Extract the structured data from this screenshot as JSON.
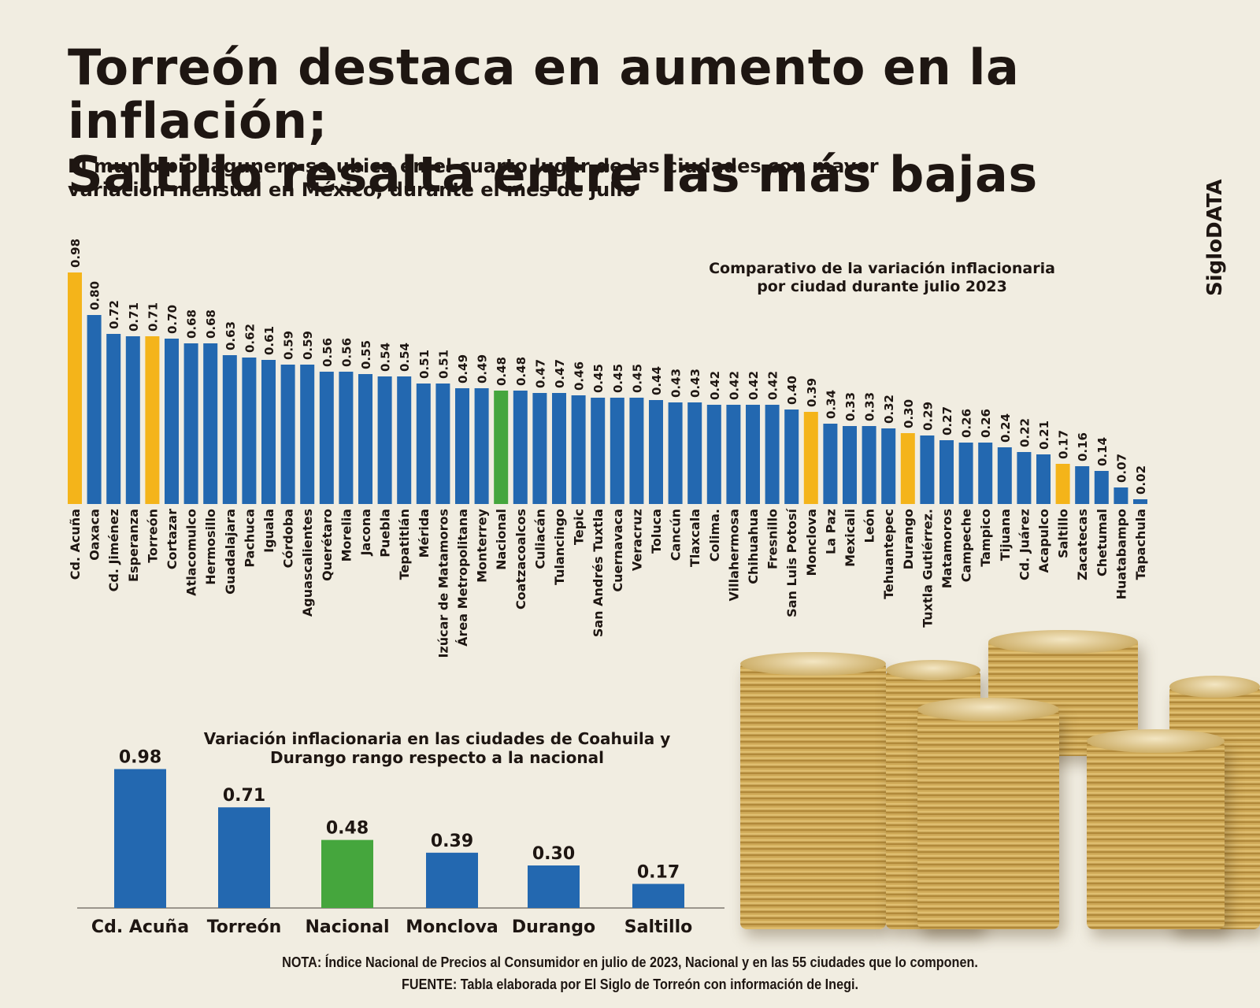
{
  "header": {
    "title_line1": "Torreón destaca en aumento en la inflación;",
    "title_line2": "Saltillo resalta entre las más bajas",
    "subtitle_line1": "El municipio lagunero se ubica en el cuarto lugar de las ciudades con mayor",
    "subtitle_line2": "variación mensual en México, durante el mes de julio",
    "brand": "SigloDATA"
  },
  "colors": {
    "city": "#2368b0",
    "highlight": "#f4b41a",
    "national": "#45a63d",
    "background": "#f1ede1",
    "text": "#1e1612"
  },
  "footer": {
    "note": "NOTA: Índice Nacional de Precios al Consumidor en julio de 2023, Nacional y en las 55 ciudades que lo componen.",
    "source": "FUENTE: Tabla elaborada por El Siglo de Torreón con información de Inegi."
  },
  "chart_data": [
    {
      "type": "bar",
      "title_line1": "Comparativo de la variación inflacionaria",
      "title_line2": "por ciudad durante julio 2023",
      "xlabel": "",
      "ylabel": "",
      "ylim": [
        0,
        1.0
      ],
      "grid": false,
      "legend": "none",
      "categories": [
        "Cd. Acuña",
        "Oaxaca",
        "Cd. Jiménez",
        "Esperanza",
        "Torreón",
        "Cortazar",
        "Atlacomulco",
        "Hermosillo",
        "Guadalajara",
        "Pachuca",
        "Iguala",
        "Córdoba",
        "Aguascalientes",
        "Querétaro",
        "Morelia",
        "Jacona",
        "Puebla",
        "Tepatitlán",
        "Mérida",
        "Izúcar de Matamoros",
        "Área Metropolitana",
        "Monterrey",
        "Nacional",
        "Coatzacoalcos",
        "Culiacán",
        "Tulancingo",
        "Tepic",
        "San Andrés Tuxtla",
        "Cuernavaca",
        "Veracruz",
        "Toluca",
        "Cancún",
        "Tlaxcala",
        "Colima.",
        "Villahermosa",
        "Chihuahua",
        "Fresnillo",
        "San Luis Potosí",
        "Monclova",
        "La Paz",
        "Mexicali",
        "León",
        "Tehuantepec",
        "Durango",
        "Tuxtla Gutiérrez.",
        "Matamoros",
        "Campeche",
        "Tampico",
        "Tijuana",
        "Cd. Juárez",
        "Acapulco",
        "Saltillo",
        "Zacatecas",
        "Chetumal",
        "Huatabampo",
        "Tapachula"
      ],
      "values": [
        0.98,
        0.8,
        0.72,
        0.71,
        0.71,
        0.7,
        0.68,
        0.68,
        0.63,
        0.62,
        0.61,
        0.59,
        0.59,
        0.56,
        0.56,
        0.55,
        0.54,
        0.54,
        0.51,
        0.51,
        0.49,
        0.49,
        0.48,
        0.48,
        0.47,
        0.47,
        0.46,
        0.45,
        0.45,
        0.45,
        0.44,
        0.43,
        0.43,
        0.42,
        0.42,
        0.42,
        0.42,
        0.4,
        0.39,
        0.34,
        0.33,
        0.33,
        0.32,
        0.3,
        0.29,
        0.27,
        0.26,
        0.26,
        0.24,
        0.22,
        0.21,
        0.17,
        0.16,
        0.14,
        0.07,
        0.02
      ],
      "value_labels": [
        "0.98",
        "0.80",
        "0.72",
        "0.71",
        "0.71",
        "0.70",
        "0.68",
        "0.68",
        "0.63",
        "0.62",
        "0.61",
        "0.59",
        "0.59",
        "0.56",
        "0.56",
        "0.55",
        "0.54",
        "0.54",
        "0.51",
        "0.51",
        "0.49",
        "0.49",
        "0.48",
        "0.48",
        "0.47",
        "0.47",
        "0.46",
        "0.45",
        "0.45",
        "0.45",
        "0.44",
        "0.43",
        "0.43",
        "0.42",
        "0.42",
        "0.42",
        "0.42",
        "0.40",
        "0.39",
        "0.34",
        "0.33",
        "0.33",
        "0.32",
        "0.30",
        "0.29",
        "0.27",
        "0.26",
        "0.26",
        "0.24",
        "0.22",
        "0.21",
        "0.17",
        "0.16",
        "0.14",
        "0.07",
        "0.02"
      ],
      "bar_groups": [
        "highlight",
        "city",
        "city",
        "city",
        "highlight",
        "city",
        "city",
        "city",
        "city",
        "city",
        "city",
        "city",
        "city",
        "city",
        "city",
        "city",
        "city",
        "city",
        "city",
        "city",
        "city",
        "city",
        "national",
        "city",
        "city",
        "city",
        "city",
        "city",
        "city",
        "city",
        "city",
        "city",
        "city",
        "city",
        "city",
        "city",
        "city",
        "city",
        "highlight",
        "city",
        "city",
        "city",
        "city",
        "highlight",
        "city",
        "city",
        "city",
        "city",
        "city",
        "city",
        "city",
        "highlight",
        "city",
        "city",
        "city",
        "city"
      ]
    },
    {
      "type": "bar",
      "title_line1": "Variación inflacionaria en las ciudades de Coahuila y",
      "title_line2": "Durango rango respecto a la nacional",
      "xlabel": "",
      "ylabel": "",
      "ylim": [
        0,
        1.0
      ],
      "grid": false,
      "legend": "none",
      "categories": [
        "Cd. Acuña",
        "Torreón",
        "Nacional",
        "Monclova",
        "Durango",
        "Saltillo"
      ],
      "values": [
        0.98,
        0.71,
        0.48,
        0.39,
        0.3,
        0.17
      ],
      "value_labels": [
        "0.98",
        "0.71",
        "0.48",
        "0.39",
        "0.30",
        "0.17"
      ],
      "bar_groups": [
        "city",
        "city",
        "national",
        "city",
        "city",
        "city"
      ]
    }
  ]
}
